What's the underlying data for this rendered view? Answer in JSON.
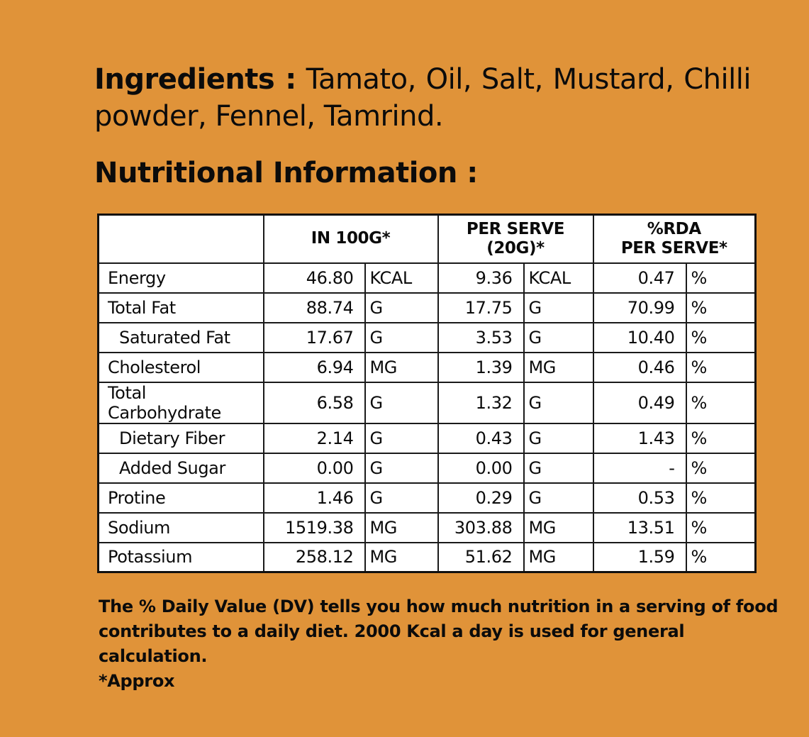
{
  "ingredients": {
    "label": "Ingredients :",
    "text": "Tamato, Oil, Salt, Mustard, Chilli powder, Fennel, Tamrind."
  },
  "nutrition": {
    "title": "Nutritional Information :",
    "headers": {
      "col1": "",
      "in100g": "IN 100G*",
      "per_serve_line1": "PER SERVE",
      "per_serve_line2": "(20G)*",
      "rda_line1": "%RDA",
      "rda_line2": "PER SERVE*"
    },
    "rows": [
      {
        "name": "Energy",
        "v100": "46.80",
        "u100": "KCAL",
        "vserve": "9.36",
        "userve": "KCAL",
        "rda": "0.47",
        "rda_unit": "%"
      },
      {
        "name": "Total Fat",
        "v100": "88.74",
        "u100": "G",
        "vserve": "17.75",
        "userve": "G",
        "rda": "70.99",
        "rda_unit": "%"
      },
      {
        "name": "Saturated Fat",
        "v100": "17.67",
        "u100": "G",
        "vserve": "3.53",
        "userve": "G",
        "rda": "10.40",
        "rda_unit": "%"
      },
      {
        "name": "Cholesterol",
        "v100": "6.94",
        "u100": "MG",
        "vserve": "1.39",
        "userve": "MG",
        "rda": "0.46",
        "rda_unit": "%"
      },
      {
        "name": "Total Carbohydrate",
        "v100": "6.58",
        "u100": "G",
        "vserve": "1.32",
        "userve": "G",
        "rda": "0.49",
        "rda_unit": "%"
      },
      {
        "name": "Dietary Fiber",
        "v100": "2.14",
        "u100": "G",
        "vserve": "0.43",
        "userve": "G",
        "rda": "1.43",
        "rda_unit": "%"
      },
      {
        "name": "Added Sugar",
        "v100": "0.00",
        "u100": "G",
        "vserve": "0.00",
        "userve": "G",
        "rda": "-",
        "rda_unit": "%"
      },
      {
        "name": "Protine",
        "v100": "1.46",
        "u100": "G",
        "vserve": "0.29",
        "userve": "G",
        "rda": "0.53",
        "rda_unit": "%"
      },
      {
        "name": "Sodium",
        "v100": "1519.38",
        "u100": "MG",
        "vserve": "303.88",
        "userve": "MG",
        "rda": "13.51",
        "rda_unit": "%"
      },
      {
        "name": "Potassium",
        "v100": "258.12",
        "u100": "MG",
        "vserve": "51.62",
        "userve": "MG",
        "rda": "1.59",
        "rda_unit": "%"
      }
    ]
  },
  "footnote": {
    "line1": "The % Daily Value (DV) tells you how much nutrition in a serving of food",
    "line2": "contributes to a daily diet. 2000 Kcal a day is used for general calculation.",
    "approx": "*Approx"
  },
  "colors": {
    "background": "#e09339",
    "table_background": "#ffffff",
    "text": "#0b0b0b"
  }
}
